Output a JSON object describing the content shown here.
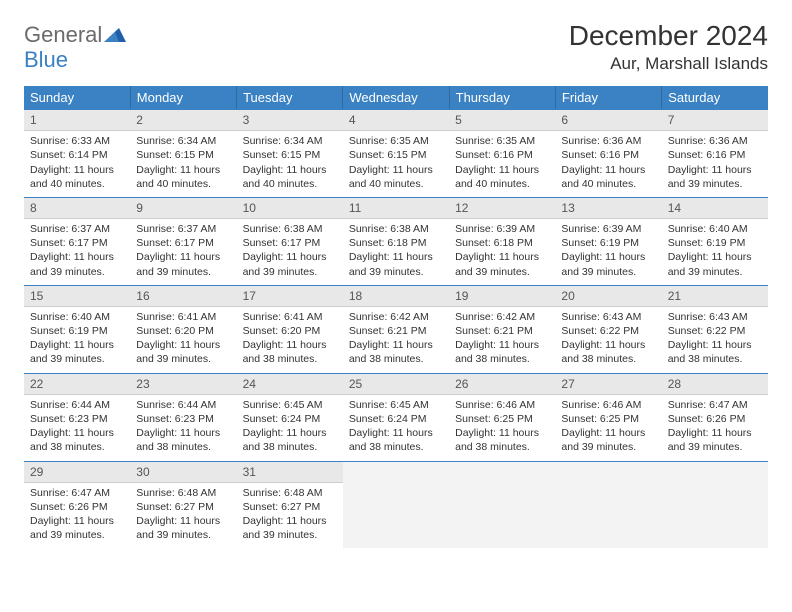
{
  "logo": {
    "general": "General",
    "blue": "Blue"
  },
  "title": "December 2024",
  "location": "Aur, Marshall Islands",
  "weekdays": [
    "Sunday",
    "Monday",
    "Tuesday",
    "Wednesday",
    "Thursday",
    "Friday",
    "Saturday"
  ],
  "colors": {
    "header_bg": "#3b82c4",
    "header_text": "#ffffff",
    "daynum_bg": "#e8e8e8",
    "border_accent": "#3b82c4",
    "logo_gray": "#6b6b6b",
    "logo_blue": "#3b7fc4"
  },
  "layout": {
    "cols": 7,
    "rows": 5,
    "cell_font_size": 10.5
  },
  "days": [
    {
      "n": 1,
      "sunrise": "6:33 AM",
      "sunset": "6:14 PM",
      "daylight": "11 hours and 40 minutes."
    },
    {
      "n": 2,
      "sunrise": "6:34 AM",
      "sunset": "6:15 PM",
      "daylight": "11 hours and 40 minutes."
    },
    {
      "n": 3,
      "sunrise": "6:34 AM",
      "sunset": "6:15 PM",
      "daylight": "11 hours and 40 minutes."
    },
    {
      "n": 4,
      "sunrise": "6:35 AM",
      "sunset": "6:15 PM",
      "daylight": "11 hours and 40 minutes."
    },
    {
      "n": 5,
      "sunrise": "6:35 AM",
      "sunset": "6:16 PM",
      "daylight": "11 hours and 40 minutes."
    },
    {
      "n": 6,
      "sunrise": "6:36 AM",
      "sunset": "6:16 PM",
      "daylight": "11 hours and 40 minutes."
    },
    {
      "n": 7,
      "sunrise": "6:36 AM",
      "sunset": "6:16 PM",
      "daylight": "11 hours and 39 minutes."
    },
    {
      "n": 8,
      "sunrise": "6:37 AM",
      "sunset": "6:17 PM",
      "daylight": "11 hours and 39 minutes."
    },
    {
      "n": 9,
      "sunrise": "6:37 AM",
      "sunset": "6:17 PM",
      "daylight": "11 hours and 39 minutes."
    },
    {
      "n": 10,
      "sunrise": "6:38 AM",
      "sunset": "6:17 PM",
      "daylight": "11 hours and 39 minutes."
    },
    {
      "n": 11,
      "sunrise": "6:38 AM",
      "sunset": "6:18 PM",
      "daylight": "11 hours and 39 minutes."
    },
    {
      "n": 12,
      "sunrise": "6:39 AM",
      "sunset": "6:18 PM",
      "daylight": "11 hours and 39 minutes."
    },
    {
      "n": 13,
      "sunrise": "6:39 AM",
      "sunset": "6:19 PM",
      "daylight": "11 hours and 39 minutes."
    },
    {
      "n": 14,
      "sunrise": "6:40 AM",
      "sunset": "6:19 PM",
      "daylight": "11 hours and 39 minutes."
    },
    {
      "n": 15,
      "sunrise": "6:40 AM",
      "sunset": "6:19 PM",
      "daylight": "11 hours and 39 minutes."
    },
    {
      "n": 16,
      "sunrise": "6:41 AM",
      "sunset": "6:20 PM",
      "daylight": "11 hours and 39 minutes."
    },
    {
      "n": 17,
      "sunrise": "6:41 AM",
      "sunset": "6:20 PM",
      "daylight": "11 hours and 38 minutes."
    },
    {
      "n": 18,
      "sunrise": "6:42 AM",
      "sunset": "6:21 PM",
      "daylight": "11 hours and 38 minutes."
    },
    {
      "n": 19,
      "sunrise": "6:42 AM",
      "sunset": "6:21 PM",
      "daylight": "11 hours and 38 minutes."
    },
    {
      "n": 20,
      "sunrise": "6:43 AM",
      "sunset": "6:22 PM",
      "daylight": "11 hours and 38 minutes."
    },
    {
      "n": 21,
      "sunrise": "6:43 AM",
      "sunset": "6:22 PM",
      "daylight": "11 hours and 38 minutes."
    },
    {
      "n": 22,
      "sunrise": "6:44 AM",
      "sunset": "6:23 PM",
      "daylight": "11 hours and 38 minutes."
    },
    {
      "n": 23,
      "sunrise": "6:44 AM",
      "sunset": "6:23 PM",
      "daylight": "11 hours and 38 minutes."
    },
    {
      "n": 24,
      "sunrise": "6:45 AM",
      "sunset": "6:24 PM",
      "daylight": "11 hours and 38 minutes."
    },
    {
      "n": 25,
      "sunrise": "6:45 AM",
      "sunset": "6:24 PM",
      "daylight": "11 hours and 38 minutes."
    },
    {
      "n": 26,
      "sunrise": "6:46 AM",
      "sunset": "6:25 PM",
      "daylight": "11 hours and 38 minutes."
    },
    {
      "n": 27,
      "sunrise": "6:46 AM",
      "sunset": "6:25 PM",
      "daylight": "11 hours and 39 minutes."
    },
    {
      "n": 28,
      "sunrise": "6:47 AM",
      "sunset": "6:26 PM",
      "daylight": "11 hours and 39 minutes."
    },
    {
      "n": 29,
      "sunrise": "6:47 AM",
      "sunset": "6:26 PM",
      "daylight": "11 hours and 39 minutes."
    },
    {
      "n": 30,
      "sunrise": "6:48 AM",
      "sunset": "6:27 PM",
      "daylight": "11 hours and 39 minutes."
    },
    {
      "n": 31,
      "sunrise": "6:48 AM",
      "sunset": "6:27 PM",
      "daylight": "11 hours and 39 minutes."
    }
  ],
  "labels": {
    "sunrise": "Sunrise:",
    "sunset": "Sunset:",
    "daylight": "Daylight:"
  },
  "start_weekday": 0,
  "trailing_empty": 4
}
